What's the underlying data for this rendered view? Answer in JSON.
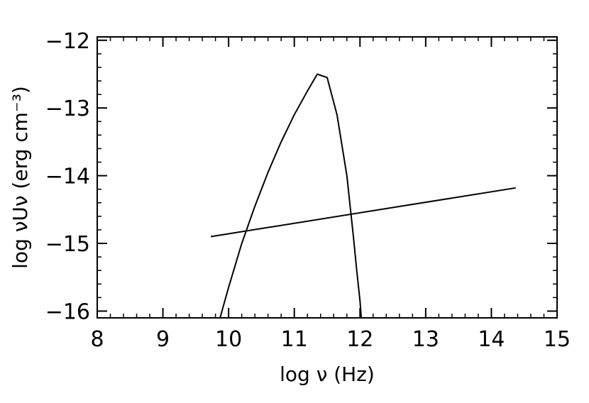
{
  "chart_data": {
    "type": "line",
    "title": "",
    "xlabel": "log ν (Hz)",
    "ylabel": "log νUν (erg cm⁻³)",
    "xlim": [
      8,
      15
    ],
    "ylim": [
      -16.1,
      -11.95
    ],
    "x_ticks": [
      8,
      9,
      10,
      11,
      12,
      13,
      14,
      15
    ],
    "y_ticks": [
      -16,
      -15,
      -14,
      -13,
      -12
    ],
    "x_tick_labels": [
      "8",
      "9",
      "10",
      "11",
      "12",
      "13",
      "14",
      "15"
    ],
    "y_tick_labels": [
      "−16",
      "−15",
      "−14",
      "−13",
      "−12"
    ],
    "grid": false,
    "series": [
      {
        "x": [
          9.87,
          10.0,
          10.2,
          10.4,
          10.6,
          10.8,
          11.0,
          11.2,
          11.35,
          11.5,
          11.65,
          11.8,
          11.9,
          11.95,
          12.0,
          12.02
        ],
        "y": [
          -16.1,
          -15.65,
          -15.0,
          -14.45,
          -13.95,
          -13.5,
          -13.1,
          -12.75,
          -12.5,
          -12.55,
          -13.1,
          -14.0,
          -14.9,
          -15.4,
          -15.85,
          -16.1
        ]
      },
      {
        "x": [
          9.73,
          14.37
        ],
        "y": [
          -14.9,
          -14.18
        ]
      }
    ]
  }
}
